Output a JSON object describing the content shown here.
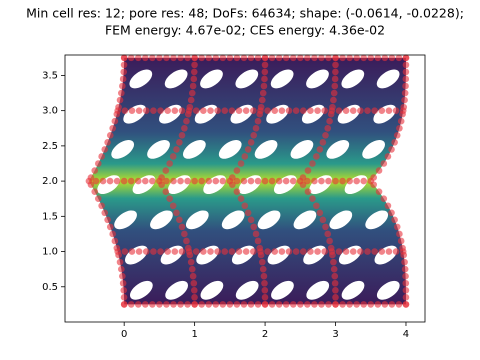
{
  "chart_data": {
    "type": "field",
    "title": "Min cell res: 12; pore res: 48; DoFs: 64634; shape: (-0.0614, -0.0228);",
    "subtitle": "FEM energy: 4.67e-02; CES energy: 4.36e-02",
    "xlim": [
      -0.84,
      4.27
    ],
    "ylim": [
      0.0,
      3.79
    ],
    "xticks": [
      0,
      1,
      2,
      3,
      4
    ],
    "yticks": [
      0.5,
      {
        "value": 1,
        "label": "1.0"
      },
      1.5,
      {
        "value": 2,
        "label": "2.0"
      },
      2.5,
      {
        "value": 3,
        "label": "3.0"
      },
      3.5
    ]
  }
}
